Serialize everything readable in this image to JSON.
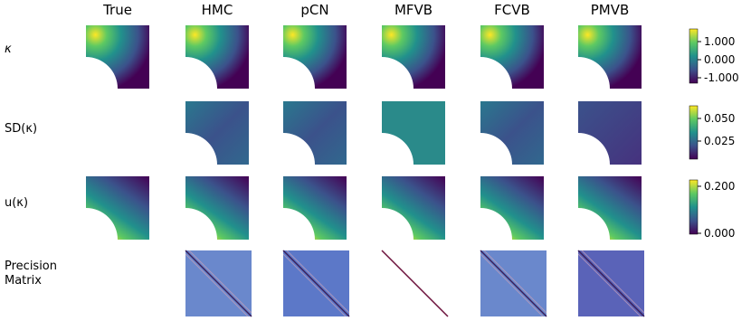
{
  "columns": [
    "True",
    "HMC",
    "pCN",
    "MFVB",
    "FCVB",
    "PMVB"
  ],
  "rows": [
    "κ",
    "SD(κ)",
    "u(κ)",
    "Precision Matrix"
  ],
  "colorbars": [
    {
      "ticks": [
        "1.000",
        "0.000",
        "-1.000"
      ]
    },
    {
      "ticks": [
        "0.050",
        "0.025"
      ]
    },
    {
      "ticks": [
        "0.200",
        "0.000"
      ]
    }
  ]
}
